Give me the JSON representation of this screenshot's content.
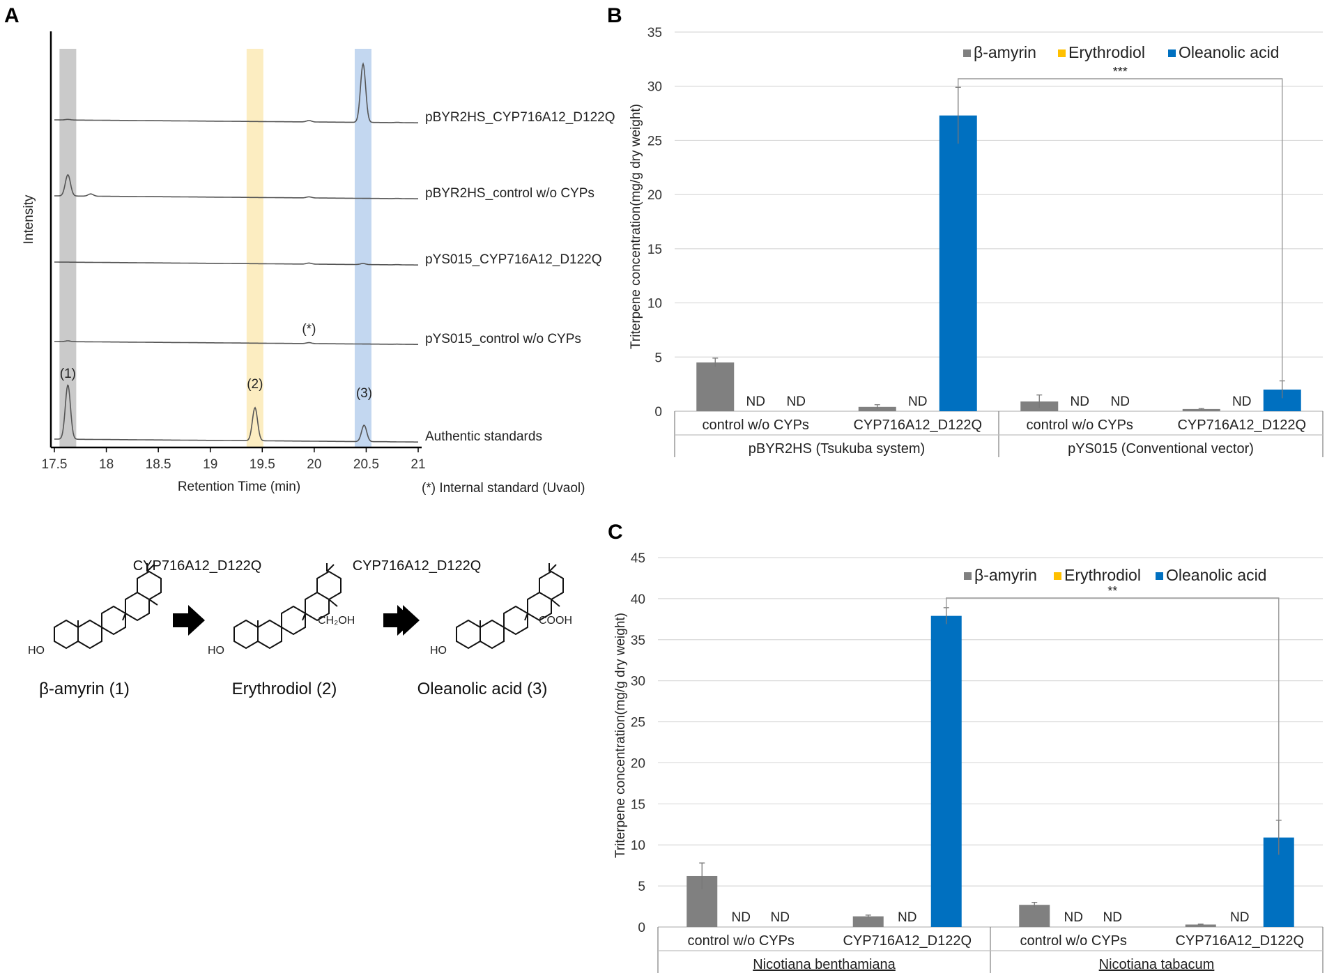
{
  "colors": {
    "beta_amyrin": "#808080",
    "erythrodiol": "#ffc000",
    "oleanolic_acid": "#0070c0",
    "grid": "#d9d9d9",
    "trace": "#555555",
    "band_gray": "#a6a6a6",
    "band_yellow": "#fbe5a6",
    "band_blue": "#a9c6ea"
  },
  "chart_data": [
    {
      "panel": "A",
      "type": "line",
      "xlabel": "Retention Time (min)",
      "ylabel": "Intensity",
      "xlim": [
        17.5,
        21
      ],
      "xticks": [
        "17.5",
        "18",
        "18.5",
        "19",
        "19.5",
        "20",
        "20.5",
        "21"
      ],
      "footnote": "(*) Internal standard (Uvaol)",
      "highlight_bands": [
        {
          "center": 17.63,
          "color": "gray"
        },
        {
          "center": 19.43,
          "color": "yellow"
        },
        {
          "center": 20.47,
          "color": "blue"
        }
      ],
      "series": [
        {
          "name": "pBYR2HS_CYP716A12_D122Q",
          "peaks": [
            {
              "rt": 17.63,
              "h": 0.12
            },
            {
              "rt": 19.95,
              "h": 0.18
            },
            {
              "rt": 20.47,
              "h": 1.0
            },
            {
              "rt": 20.8,
              "h": 0.08
            }
          ]
        },
        {
          "name": "pBYR2HS_control w/o CYPs",
          "peaks": [
            {
              "rt": 17.63,
              "h": 0.38
            },
            {
              "rt": 17.85,
              "h": 0.04
            },
            {
              "rt": 19.95,
              "h": 0.16
            },
            {
              "rt": 20.8,
              "h": 0.07
            }
          ]
        },
        {
          "name": "pYS015_CYP716A12_D122Q",
          "peaks": [
            {
              "rt": 17.63,
              "h": 0.02
            },
            {
              "rt": 19.95,
              "h": 0.16
            },
            {
              "rt": 20.47,
              "h": 0.16
            },
            {
              "rt": 20.8,
              "h": 0.07
            }
          ]
        },
        {
          "name": "pYS015_control w/o CYPs",
          "peaks": [
            {
              "rt": 17.63,
              "h": 0.14
            },
            {
              "rt": 19.95,
              "h": 0.15
            },
            {
              "rt": 20.8,
              "h": 0.06
            }
          ],
          "annotation": "(*)"
        },
        {
          "name": "Authentic standards",
          "peaks": [
            {
              "rt": 17.63,
              "h": 1.0
            },
            {
              "rt": 19.43,
              "h": 0.78
            },
            {
              "rt": 20.48,
              "h": 0.55
            },
            {
              "rt": 20.68,
              "h": 0.05
            }
          ],
          "peak_labels": [
            "(1)",
            "(2)",
            "(3)"
          ]
        }
      ]
    },
    {
      "panel": "B",
      "type": "bar",
      "ylabel": "Triterpene concentration(mg/g dry weight)",
      "ylim": [
        0,
        35
      ],
      "yticks": [
        "0",
        "5",
        "10",
        "15",
        "20",
        "25",
        "30",
        "35"
      ],
      "legend": [
        "β-amyrin",
        "Erythrodiol",
        "Oleanolic acid"
      ],
      "groups": [
        "pBYR2HS (Tsukuba system)",
        "pYS015 (Conventional vector)"
      ],
      "categories": [
        "control w/o CYPs",
        "CYP716A12_D122Q",
        "control w/o CYPs",
        "CYP716A12_D122Q"
      ],
      "series": [
        {
          "name": "β-amyrin",
          "values": [
            4.5,
            0.4,
            0.9,
            0.2
          ],
          "errors": [
            0.4,
            0.2,
            0.6,
            0.05
          ]
        },
        {
          "name": "Erythrodiol",
          "values": [
            null,
            null,
            null,
            null
          ],
          "labels": [
            "ND",
            "ND",
            "ND",
            "ND"
          ]
        },
        {
          "name": "Oleanolic acid",
          "values": [
            null,
            27.3,
            null,
            2.0
          ],
          "errors": [
            null,
            2.6,
            null,
            0.8
          ],
          "labels": [
            "ND",
            "",
            "ND",
            ""
          ]
        }
      ],
      "significance": "***",
      "nd_text": "ND"
    },
    {
      "panel": "C",
      "type": "bar",
      "ylabel": "Triterpene concentration(mg/g dry weight)",
      "ylim": [
        0,
        45
      ],
      "yticks": [
        "0",
        "5",
        "10",
        "15",
        "20",
        "25",
        "30",
        "35",
        "40",
        "45"
      ],
      "legend": [
        "β-amyrin",
        "Erythrodiol",
        "Oleanolic acid"
      ],
      "groups": [
        "Nicotiana benthamiana",
        "Nicotiana tabacum"
      ],
      "categories": [
        "control w/o CYPs",
        "CYP716A12_D122Q",
        "control w/o CYPs",
        "CYP716A12_D122Q"
      ],
      "series": [
        {
          "name": "β-amyrin",
          "values": [
            6.2,
            1.3,
            2.7,
            0.3
          ],
          "errors": [
            1.6,
            0.15,
            0.3,
            0.05
          ]
        },
        {
          "name": "Erythrodiol",
          "values": [
            null,
            null,
            null,
            null
          ],
          "labels": [
            "ND",
            "ND",
            "ND",
            "ND"
          ]
        },
        {
          "name": "Oleanolic acid",
          "values": [
            null,
            37.9,
            null,
            10.9
          ],
          "errors": [
            null,
            1.0,
            null,
            2.1
          ],
          "labels": [
            "ND",
            "",
            "ND",
            ""
          ]
        }
      ],
      "significance": "**",
      "nd_text": "ND"
    }
  ],
  "pathway": {
    "enzyme1": "CYP716A12_D122Q",
    "enzyme2": "CYP716A12_D122Q",
    "compound1": "β-amyrin (1)",
    "compound2": "Erythrodiol (2)",
    "compound3": "Oleanolic acid (3)",
    "ho": "HO",
    "ch2oh": "CH₂OH",
    "cooh": "COOH"
  },
  "panel_labels": {
    "a": "A",
    "b": "B",
    "c": "C"
  }
}
